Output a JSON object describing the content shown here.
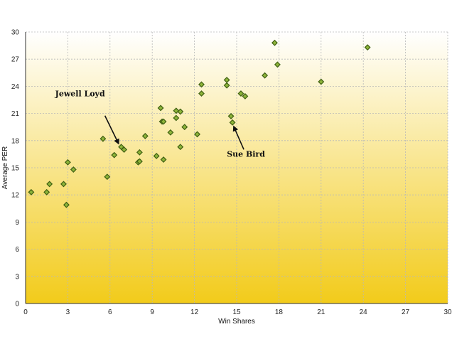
{
  "chart_data": {
    "type": "scatter",
    "xlabel": "Win Shares",
    "ylabel": "Average PER",
    "xlim": [
      0,
      30
    ],
    "ylim": [
      0,
      30
    ],
    "xticks": [
      0,
      3,
      6,
      9,
      12,
      15,
      18,
      21,
      24,
      27,
      30
    ],
    "yticks": [
      0,
      3,
      6,
      9,
      12,
      15,
      18,
      21,
      24,
      27,
      30
    ],
    "grid": true,
    "marker": "diamond",
    "colors": {
      "marker_fill": "#8db43a",
      "marker_edge": "#3f5f12",
      "background_top": "#ffffff",
      "background_bottom": "#f2cb1a",
      "grid": "#b8b8b8"
    },
    "points": [
      {
        "x": 0.4,
        "y": 12.3
      },
      {
        "x": 1.5,
        "y": 12.3
      },
      {
        "x": 1.7,
        "y": 13.2
      },
      {
        "x": 2.7,
        "y": 13.2
      },
      {
        "x": 2.9,
        "y": 10.9
      },
      {
        "x": 3.0,
        "y": 15.6
      },
      {
        "x": 3.4,
        "y": 14.8
      },
      {
        "x": 5.5,
        "y": 18.2
      },
      {
        "x": 5.8,
        "y": 14.0
      },
      {
        "x": 6.3,
        "y": 16.4
      },
      {
        "x": 6.8,
        "y": 17.3
      },
      {
        "x": 7.0,
        "y": 17.0
      },
      {
        "x": 8.0,
        "y": 15.6
      },
      {
        "x": 8.1,
        "y": 15.7
      },
      {
        "x": 8.1,
        "y": 16.7
      },
      {
        "x": 8.5,
        "y": 18.5
      },
      {
        "x": 9.3,
        "y": 16.3
      },
      {
        "x": 9.6,
        "y": 21.6
      },
      {
        "x": 9.7,
        "y": 20.1
      },
      {
        "x": 9.8,
        "y": 20.1
      },
      {
        "x": 9.8,
        "y": 15.9
      },
      {
        "x": 10.3,
        "y": 18.9
      },
      {
        "x": 10.7,
        "y": 21.3
      },
      {
        "x": 10.7,
        "y": 20.5
      },
      {
        "x": 11.0,
        "y": 17.3
      },
      {
        "x": 11.0,
        "y": 21.2
      },
      {
        "x": 11.3,
        "y": 19.5
      },
      {
        "x": 12.2,
        "y": 18.7
      },
      {
        "x": 12.5,
        "y": 24.2
      },
      {
        "x": 12.5,
        "y": 23.2
      },
      {
        "x": 14.3,
        "y": 24.7
      },
      {
        "x": 14.3,
        "y": 24.1
      },
      {
        "x": 14.6,
        "y": 20.7
      },
      {
        "x": 14.7,
        "y": 20.0
      },
      {
        "x": 15.3,
        "y": 23.2
      },
      {
        "x": 15.6,
        "y": 22.9
      },
      {
        "x": 17.0,
        "y": 25.2
      },
      {
        "x": 17.7,
        "y": 28.8
      },
      {
        "x": 17.9,
        "y": 26.4
      },
      {
        "x": 21.0,
        "y": 24.5
      },
      {
        "x": 24.3,
        "y": 28.3
      }
    ],
    "annotations": [
      {
        "text": "Jewell Loyd",
        "x": 6.8,
        "y": 17.3
      },
      {
        "text": "Sue Bird",
        "x": 14.7,
        "y": 20.0
      }
    ]
  }
}
